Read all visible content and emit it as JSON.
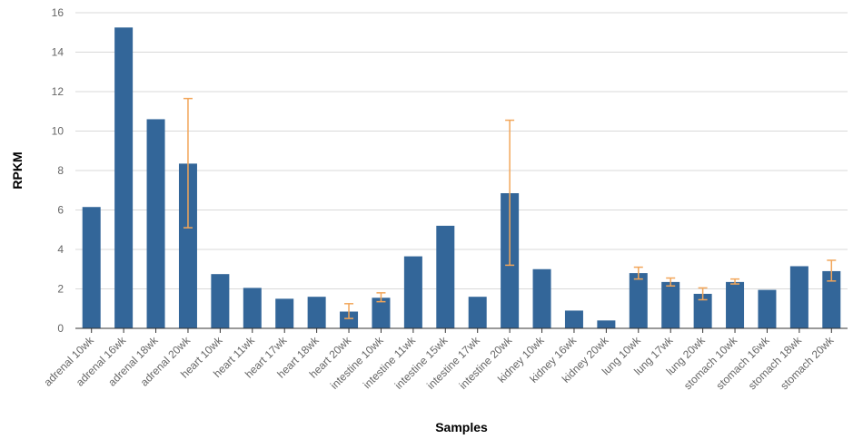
{
  "chart_data": {
    "type": "bar",
    "title": "",
    "xlabel": "Samples",
    "ylabel": "RPKM",
    "ylim": [
      0,
      16
    ],
    "yticks": [
      0,
      2,
      4,
      6,
      8,
      10,
      12,
      14,
      16
    ],
    "grid": true,
    "legend": "none",
    "colors": {
      "bar": "#336699",
      "error": "#f2a65a",
      "grid": "#d9d9d9",
      "axis": "#333333"
    },
    "categories": [
      "adrenal 10wk",
      "adrenal 16wk",
      "adrenal 18wk",
      "adrenal 20wk",
      "heart 10wk",
      "heart 11wk",
      "heart 17wk",
      "heart 18wk",
      "heart 20wk",
      "intestine 10wk",
      "intestine 11wk",
      "intestine 15wk",
      "intestine 17wk",
      "intestine 20wk",
      "kidney 10wk",
      "kidney 16wk",
      "kidney 20wk",
      "lung 10wk",
      "lung 17wk",
      "lung 20wk",
      "stomach 10wk",
      "stomach 16wk",
      "stomach 18wk",
      "stomach 20wk"
    ],
    "values": [
      6.15,
      15.25,
      10.6,
      8.35,
      2.75,
      2.05,
      1.5,
      1.6,
      0.85,
      1.55,
      3.65,
      5.2,
      1.6,
      6.85,
      3.0,
      0.9,
      0.4,
      2.8,
      2.35,
      1.75,
      2.35,
      1.95,
      3.15,
      2.9
    ],
    "error_low": [
      null,
      null,
      null,
      5.1,
      null,
      null,
      null,
      null,
      0.5,
      1.35,
      null,
      null,
      null,
      3.2,
      null,
      null,
      null,
      2.5,
      2.15,
      1.45,
      2.25,
      null,
      null,
      2.4
    ],
    "error_high": [
      null,
      null,
      null,
      11.65,
      null,
      null,
      null,
      null,
      1.25,
      1.8,
      null,
      null,
      null,
      10.55,
      null,
      null,
      null,
      3.1,
      2.55,
      2.05,
      2.5,
      null,
      null,
      3.45
    ]
  }
}
